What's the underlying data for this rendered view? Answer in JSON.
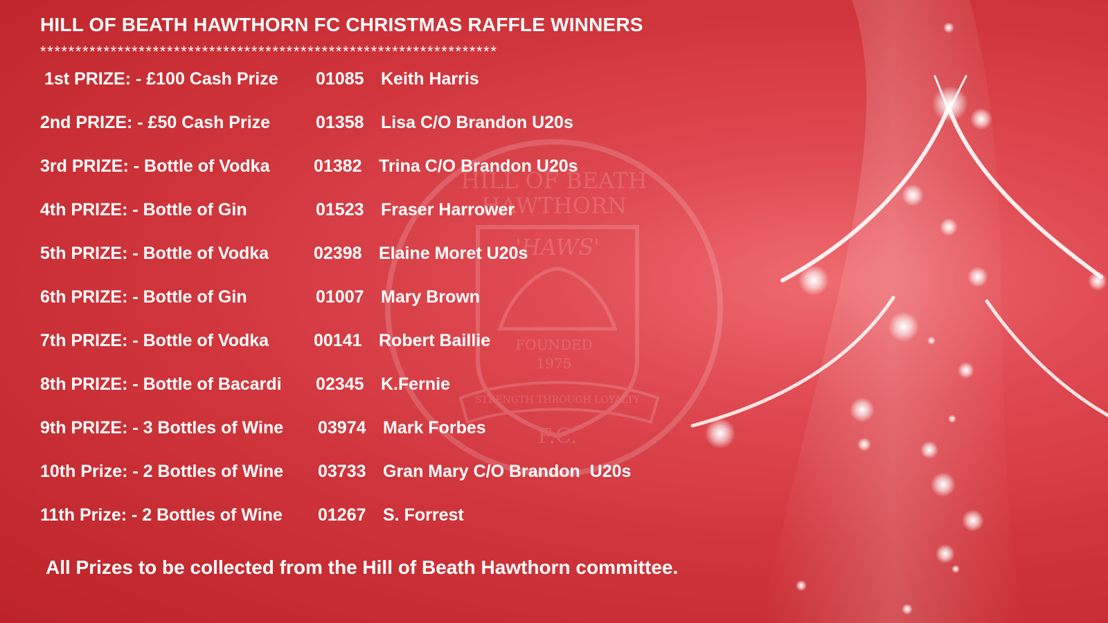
{
  "title": "HILL OF BEATH HAWTHORN FC CHRISTMAS RAFFLE WINNERS",
  "divider": "*****************************************************************",
  "winners": [
    {
      "prize": "1st PRIZE: - £100 Cash Prize",
      "ticket": "01085",
      "name": "Keith Harris"
    },
    {
      "prize": "2nd PRIZE: - £50 Cash Prize",
      "ticket": "01358",
      "name": "Lisa C/O Brandon U20s"
    },
    {
      "prize": "3rd PRIZE: - Bottle of Vodka",
      "ticket": "01382",
      "name": "Trina C/O Brandon U20s"
    },
    {
      "prize": "4th PRIZE: - Bottle of Gin",
      "ticket": "01523",
      "name": "Fraser Harrower"
    },
    {
      "prize": "5th PRIZE: - Bottle of Vodka",
      "ticket": "02398",
      "name": "Elaine Moret U20s"
    },
    {
      "prize": "6th PRIZE: - Bottle of Gin",
      "ticket": "01007",
      "name": "Mary Brown"
    },
    {
      "prize": "7th PRIZE: - Bottle of Vodka",
      "ticket": "00141",
      "name": "Robert Baillie"
    },
    {
      "prize": "8th PRIZE: - Bottle of Bacardi",
      "ticket": "02345",
      "name": "K.Fernie"
    },
    {
      "prize": "9th PRIZE: - 3 Bottles of Wine",
      "ticket": "03974",
      "name": "Mark Forbes"
    },
    {
      "prize": "10th Prize: - 2 Bottles of Wine",
      "ticket": "03733",
      "name": "Gran Mary C/O Brandon  U20s"
    },
    {
      "prize": "11th Prize: - 2 Bottles of Wine",
      "ticket": "01267",
      "name": "S. Forrest"
    }
  ],
  "footer": "All Prizes to be collected from the Hill of Beath Hawthorn committee.",
  "crest": {
    "line1": "HILL OF BEATH",
    "line2": "HAWTHORN",
    "nickname": "'HAWS'",
    "founded": "FOUNDED",
    "year": "1975",
    "motto": "STRENGTH THROUGH LOYALTY",
    "fc": "F.C."
  },
  "colors": {
    "background": "#d0353c",
    "text": "#ffffff"
  }
}
